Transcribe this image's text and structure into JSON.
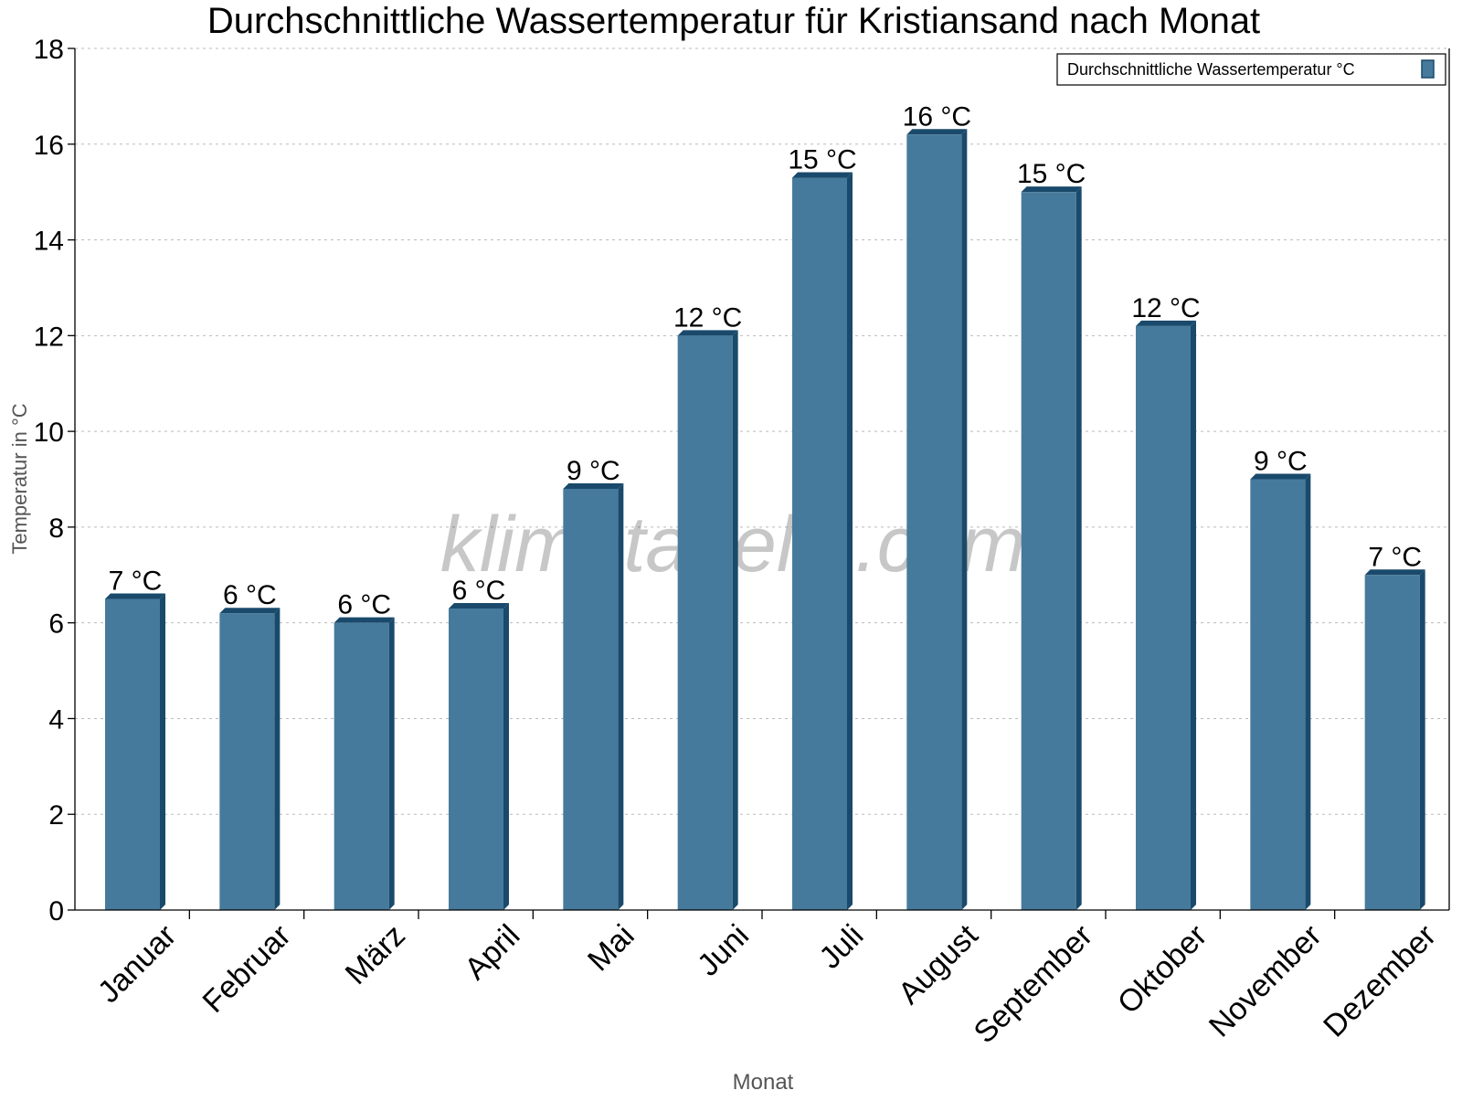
{
  "chart_data": {
    "type": "bar",
    "title": "Durchschnittliche Wassertemperatur für Kristiansand nach Monat",
    "xlabel": "Monat",
    "ylabel": "Temperatur in °C",
    "ylim": [
      0,
      18
    ],
    "yticks": [
      "0",
      "2",
      "4",
      "6",
      "8",
      "10",
      "12",
      "14",
      "16",
      "18"
    ],
    "grid": true,
    "legend_position": "top-right",
    "categories": [
      "Januar",
      "Februar",
      "März",
      "April",
      "Mai",
      "Juni",
      "Juli",
      "August",
      "September",
      "Oktober",
      "November",
      "Dezember"
    ],
    "series": [
      {
        "name": "Durchschnittliche Wassertemperatur °C",
        "values": [
          6.5,
          6.2,
          6.0,
          6.3,
          8.8,
          12.0,
          15.3,
          16.2,
          15.0,
          12.2,
          9.0,
          7.0
        ],
        "data_labels": [
          "7 °C",
          "6 °C",
          "6 °C",
          "6 °C",
          "9 °C",
          "12 °C",
          "15 °C",
          "16 °C",
          "15 °C",
          "12 °C",
          "9 °C",
          "7 °C"
        ],
        "color": "#467a9c",
        "shade_color": "#1a4a6b"
      }
    ],
    "watermark": "klimatabelle.com"
  }
}
